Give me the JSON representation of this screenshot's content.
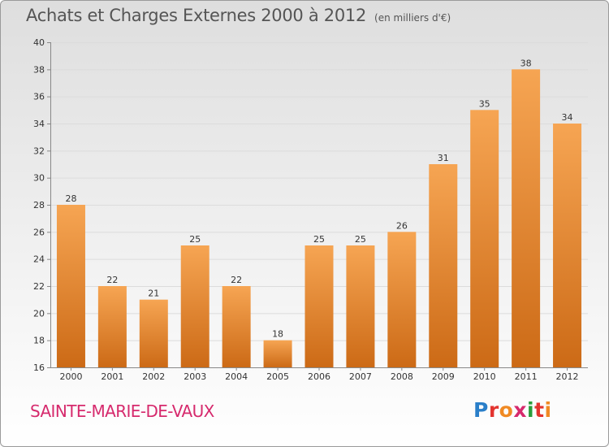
{
  "header": {
    "title": "Achats et Charges Externes 2000 à 2012",
    "subtitle": "(en milliers d'€)"
  },
  "footer": {
    "commune": "SAINTE-MARIE-DE-VAUX",
    "logo_letters": [
      "P",
      "r",
      "o",
      "x",
      "i",
      "t",
      "i"
    ],
    "logo_colors": [
      "#2a7fc9",
      "#e3342f",
      "#f08a24",
      "#d62a6d",
      "#2a9d3b",
      "#e3342f",
      "#f08a24"
    ]
  },
  "chart_data": {
    "type": "bar",
    "categories": [
      "2000",
      "2001",
      "2002",
      "2003",
      "2004",
      "2005",
      "2006",
      "2007",
      "2008",
      "2009",
      "2010",
      "2011",
      "2012"
    ],
    "values": [
      28,
      22,
      21,
      25,
      22,
      18,
      25,
      25,
      26,
      31,
      35,
      38,
      34
    ],
    "yticks": [
      16,
      18,
      20,
      22,
      24,
      26,
      28,
      30,
      32,
      34,
      36,
      38,
      40
    ],
    "ylim": [
      16,
      40
    ],
    "grid": true,
    "bar_color_top": "#f6a553",
    "bar_color_bottom": "#cc6a16"
  }
}
